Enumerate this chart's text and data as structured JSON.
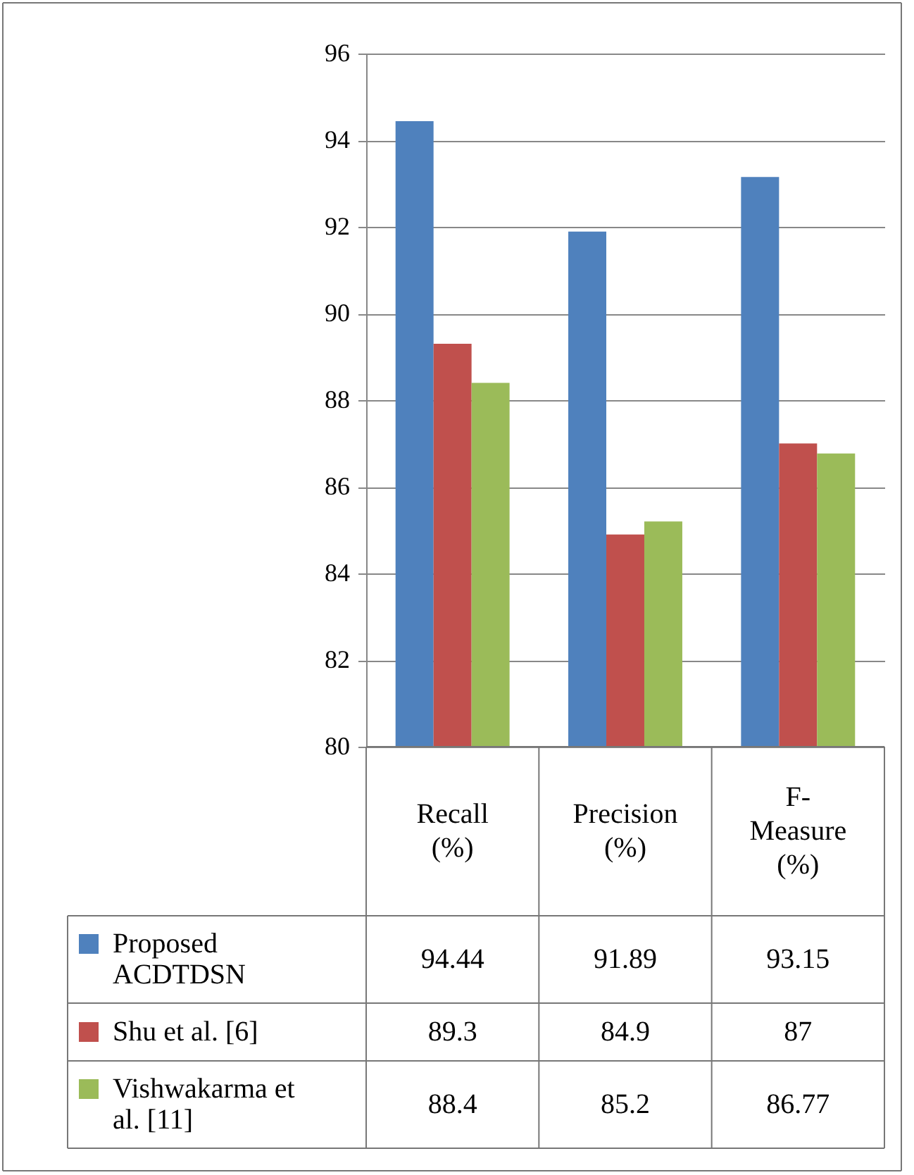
{
  "chart_data": {
    "type": "bar",
    "categories": [
      "Recall (%)",
      "Precision (%)",
      "F-Measure (%)"
    ],
    "series": [
      {
        "name": "Proposed ACDTDSN",
        "color": "#4f81bd",
        "values": [
          94.44,
          91.89,
          93.15
        ]
      },
      {
        "name": "Shu et al. [6]",
        "color": "#c0504d",
        "values": [
          89.3,
          84.9,
          87
        ]
      },
      {
        "name": "Vishwakarma et al. [11]",
        "color": "#9bbb59",
        "values": [
          88.4,
          85.2,
          86.77
        ]
      }
    ],
    "ylim": [
      80,
      96
    ],
    "yticks": [
      80,
      82,
      84,
      86,
      88,
      90,
      92,
      94,
      96
    ],
    "grid": "y",
    "legend": "bottom",
    "data_labels": true
  }
}
